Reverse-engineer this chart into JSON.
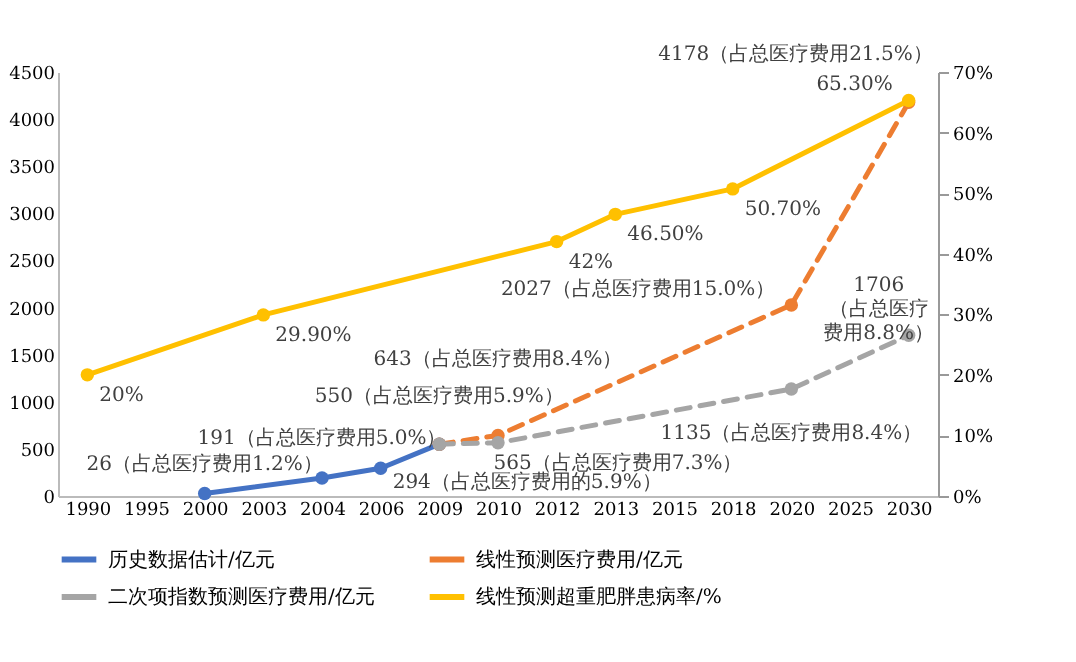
{
  "chart_data": {
    "type": "line",
    "categories": [
      "1990",
      "1995",
      "2000",
      "2003",
      "2004",
      "2006",
      "2009",
      "2010",
      "2012",
      "2013",
      "2015",
      "2018",
      "2020",
      "2025",
      "2030"
    ],
    "ylim": [
      0,
      4500
    ],
    "yticks": [
      0,
      500,
      1000,
      1500,
      2000,
      2500,
      3000,
      3500,
      4000,
      4500
    ],
    "y2lim": [
      0,
      70
    ],
    "y2ticks": [
      {
        "value": 0,
        "label": "0%"
      },
      {
        "value": 10,
        "label": "10%"
      },
      {
        "value": 20,
        "label": "20%"
      },
      {
        "value": 30,
        "label": "30%"
      },
      {
        "value": 40,
        "label": "40%"
      },
      {
        "value": 50,
        "label": "50%"
      },
      {
        "value": 60,
        "label": "60%"
      },
      {
        "value": 70,
        "label": "70%"
      }
    ],
    "grid": false,
    "legend": "bottom",
    "marker": "circle",
    "series": [
      {
        "name": "历史数据估计/亿元",
        "color": "#4472c4",
        "line_style": "solid",
        "values": [
          null,
          null,
          26,
          null,
          191,
          294,
          550,
          null,
          null,
          null,
          null,
          null,
          null,
          null,
          null
        ],
        "value_labels": [
          null,
          null,
          "26（占总医疗费用1.2%）",
          null,
          "191（占总医疗费用5.0%）",
          "294（占总医疗费用的5.9%）",
          "550（占总医疗费用5.9%）",
          null,
          null,
          null,
          null,
          null,
          null,
          null,
          null
        ]
      },
      {
        "name": "线性预测医疗费用/亿元",
        "color": "#ed7d31",
        "line_style": "dashed",
        "values": [
          null,
          null,
          null,
          null,
          null,
          null,
          550,
          643,
          null,
          null,
          null,
          null,
          2027,
          null,
          4178
        ],
        "value_labels": [
          null,
          null,
          null,
          null,
          null,
          null,
          null,
          "643（占总医疗费用8.4%）",
          null,
          null,
          null,
          null,
          "2027（占总医疗费用15.0%）",
          null,
          "4178（占总医疗费用21.5%）"
        ]
      },
      {
        "name": "二次项指数预测医疗费用/亿元",
        "color": "#a5a5a5",
        "line_style": "dashed",
        "values": [
          null,
          null,
          null,
          null,
          null,
          null,
          550,
          565,
          null,
          null,
          null,
          null,
          1135,
          null,
          1706
        ],
        "value_labels": [
          null,
          null,
          null,
          null,
          null,
          null,
          null,
          "565（占总医疗费用7.3%）",
          null,
          null,
          null,
          null,
          "1135（占总医疗费用8.4%）",
          null,
          "1706（占总医疗费用8.8%）"
        ]
      },
      {
        "name": "线性预测超重肥胖患病率/%",
        "color": "#ffc000",
        "line_style": "solid",
        "axis": "y2",
        "values": [
          20,
          null,
          null,
          29.9,
          null,
          null,
          null,
          null,
          42,
          46.5,
          null,
          50.7,
          null,
          null,
          65.3
        ],
        "value_labels": [
          "20%",
          null,
          null,
          "29.90%",
          null,
          null,
          null,
          null,
          "42%",
          "46.50%",
          null,
          "50.70%",
          null,
          null,
          "65.30%"
        ]
      }
    ]
  }
}
